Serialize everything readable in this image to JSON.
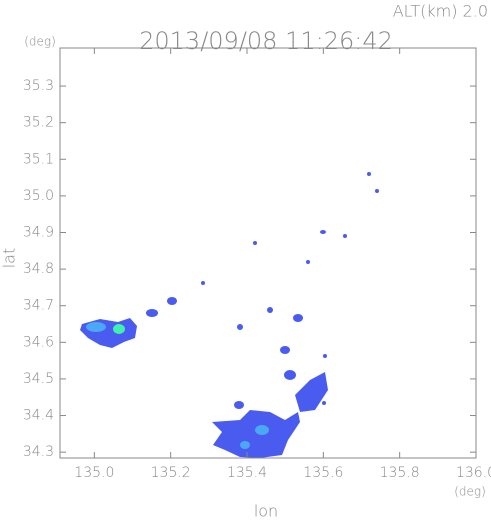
{
  "chart_data": {
    "type": "map",
    "title": "2013/09/08 11:26:42",
    "subtitle": "ALT(km) 2.0",
    "x_label": "lon",
    "y_label": "lat",
    "x_unit": "(deg)",
    "y_unit": "(deg)",
    "xlim": [
      134.91,
      136.0
    ],
    "ylim": [
      34.284,
      35.404
    ],
    "xticks": [
      {
        "value": 135.0,
        "label": "135.0"
      },
      135.2,
      135.4,
      135.6,
      135.8,
      {
        "value": 136.0,
        "label": "136.0"
      }
    ],
    "yticks": [
      {
        "value": 34.3,
        "label": "34.3"
      },
      34.4,
      34.5,
      34.6,
      34.7,
      34.8,
      34.9,
      {
        "value": 35.0,
        "label": "35.0"
      },
      35.1,
      35.2,
      35.3
    ],
    "color": "#888888"
  }
}
